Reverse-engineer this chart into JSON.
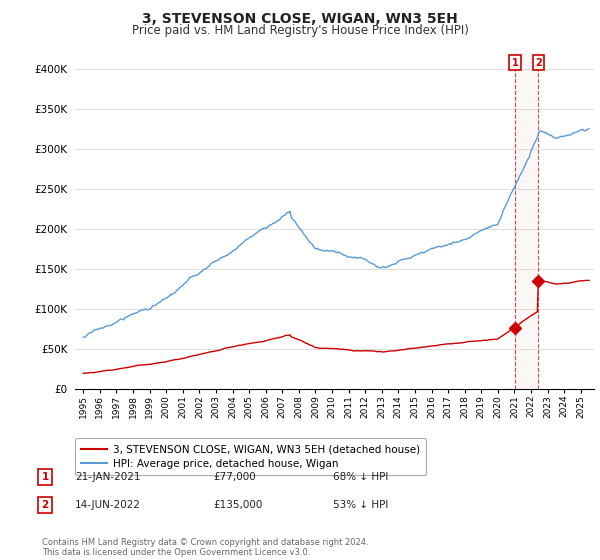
{
  "title": "3, STEVENSON CLOSE, WIGAN, WN3 5EH",
  "subtitle": "Price paid vs. HM Land Registry's House Price Index (HPI)",
  "ylim": [
    0,
    420000
  ],
  "xlim": [
    1994.5,
    2025.8
  ],
  "hpi_color": "#5b9bd5",
  "price_color": "#cc0000",
  "sale1_date": 2021.05,
  "sale1_price": 77000,
  "sale2_date": 2022.45,
  "sale2_price": 135000,
  "legend_entries": [
    "3, STEVENSON CLOSE, WIGAN, WN3 5EH (detached house)",
    "HPI: Average price, detached house, Wigan"
  ],
  "table_rows": [
    [
      "1",
      "21-JAN-2021",
      "£77,000",
      "68% ↓ HPI"
    ],
    [
      "2",
      "14-JUN-2022",
      "£135,000",
      "53% ↓ HPI"
    ]
  ],
  "footnote": "Contains HM Land Registry data © Crown copyright and database right 2024.\nThis data is licensed under the Open Government Licence v3.0.",
  "ytick_labels": [
    "£0",
    "£50K",
    "£100K",
    "£150K",
    "£200K",
    "£250K",
    "£300K",
    "£350K",
    "£400K"
  ],
  "ytick_values": [
    0,
    50000,
    100000,
    150000,
    200000,
    250000,
    300000,
    350000,
    400000
  ],
  "background_color": "#ffffff",
  "grid_color": "#dddddd",
  "shade_color": "#f5c6c6",
  "title_fontsize": 10,
  "subtitle_fontsize": 8.5
}
